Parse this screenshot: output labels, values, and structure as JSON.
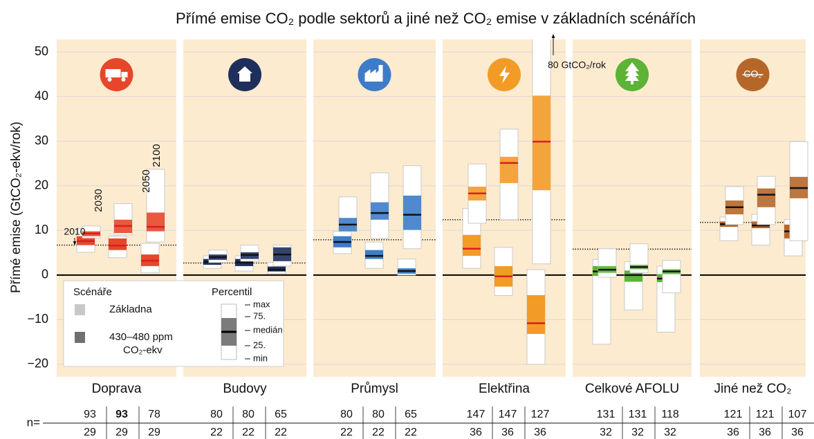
{
  "chart_data": {
    "type": "boxplot",
    "title": "Přímé emise CO₂ podle sektorů a jiné než CO₂ emise v základních scénářích",
    "y_label": "Přímé emise (GtCO₂-ekv/rok)",
    "ylim": [
      -22.8,
      52.8
    ],
    "yticks": [
      {
        "value": -20,
        "label": "−20"
      },
      {
        "value": -10,
        "label": "−10"
      },
      0,
      10,
      20,
      30,
      40,
      50
    ],
    "grid": true,
    "reference_year_label": "2010",
    "year_labels": [
      "2030",
      "2050",
      "2100"
    ],
    "annotation": "80 GtCO₂/rok",
    "n_label": "n=",
    "legend": {
      "scenarios_title": "Scénáře",
      "scenarios": [
        {
          "label_lines": [
            "Základna"
          ],
          "color": "#c8c8c8"
        },
        {
          "label_lines": [
            "430–480 ppm",
            "CO₂-ekv"
          ],
          "color": "#707070"
        }
      ],
      "percentile_title": "Percentil",
      "percentiles": [
        "max",
        "75.",
        "medián",
        "25.",
        "min"
      ]
    },
    "sectors": [
      {
        "name": "Doprava",
        "color": "#e8462a",
        "ref_2010": 6.7,
        "n_baseline": [
          93,
          93,
          78
        ],
        "n_mitigation": [
          29,
          29,
          29
        ],
        "baseline": [
          {
            "min": 8.3,
            "q25": 8.7,
            "median": 9.3,
            "q75": 9.8,
            "max": 11
          },
          {
            "min": 9,
            "q25": 9.4,
            "median": 11,
            "q75": 12.4,
            "max": 16
          },
          {
            "min": 7.4,
            "q25": 9.8,
            "median": 10.8,
            "q75": 14,
            "max": 23.7
          }
        ],
        "mitigation": [
          {
            "min": 5.1,
            "q25": 6.7,
            "median": 7.6,
            "q75": 8.7,
            "max": 10.5
          },
          {
            "min": 3.9,
            "q25": 5.6,
            "median": 6.6,
            "q75": 8.2,
            "max": 8.7
          },
          {
            "min": 0.5,
            "q25": 2,
            "median": 3.2,
            "q75": 4.6,
            "max": 7.1
          }
        ]
      },
      {
        "name": "Budovy",
        "color": "#1f2f5c",
        "ref_2010": 2.7,
        "n_baseline": [
          80,
          80,
          65
        ],
        "n_mitigation": [
          22,
          22,
          22
        ],
        "baseline": [
          {
            "min": 2.8,
            "q25": 3.4,
            "median": 4,
            "q75": 4.6,
            "max": 5.6
          },
          {
            "min": 3.1,
            "q25": 3.6,
            "median": 4.5,
            "q75": 5.1,
            "max": 6.7
          },
          {
            "min": 2,
            "q25": 3.1,
            "median": 4.6,
            "q75": 6.2,
            "max": 6.7
          }
        ],
        "mitigation": [
          {
            "min": 1.5,
            "q25": 2.3,
            "median": 2.9,
            "q75": 3.6,
            "max": 4.3
          },
          {
            "min": 0.9,
            "q25": 2,
            "median": 2.8,
            "q75": 3.6,
            "max": 4.3
          },
          {
            "min": 0.3,
            "q25": 0.8,
            "median": 1.2,
            "q75": 1.9,
            "max": 2.8
          }
        ]
      },
      {
        "name": "Průmysl",
        "color": "#3d7cc9",
        "ref_2010": 7.9,
        "n_baseline": [
          80,
          80,
          65
        ],
        "n_mitigation": [
          22,
          22,
          22
        ],
        "baseline": [
          {
            "min": 9.8,
            "q25": 9.8,
            "median": 11.3,
            "q75": 12.8,
            "max": 17.5
          },
          {
            "min": 8.2,
            "q25": 12.4,
            "median": 13.9,
            "q75": 16.3,
            "max": 22.9
          },
          {
            "min": 5.9,
            "q25": 10.1,
            "median": 13.5,
            "q75": 17.8,
            "max": 24.5
          }
        ],
        "mitigation": [
          {
            "min": 4.8,
            "q25": 6.2,
            "median": 7.4,
            "q75": 8.7,
            "max": 9.8
          },
          {
            "min": 1.5,
            "q25": 3.6,
            "median": 4.3,
            "q75": 5.6,
            "max": 7.4
          },
          {
            "min": 0,
            "q25": 0.3,
            "median": 0.9,
            "q75": 1.5,
            "max": 3.6
          }
        ]
      },
      {
        "name": "Elektřina",
        "color": "#f29b26",
        "ref_2010": 12.4,
        "n_baseline": [
          147,
          147,
          127
        ],
        "n_mitigation": [
          36,
          36,
          36
        ],
        "baseline": [
          {
            "min": 11.6,
            "q25": 16.7,
            "median": 18.3,
            "q75": 19.8,
            "max": 24.9
          },
          {
            "min": 12.4,
            "q25": 20.6,
            "median": 25.1,
            "q75": 26.5,
            "max": 32.7
          },
          {
            "min": 2.5,
            "q25": 19,
            "median": 29.9,
            "q75": 40.2,
            "max": 80
          }
        ],
        "mitigation": [
          {
            "min": 1.5,
            "q25": 4.3,
            "median": 5.9,
            "q75": 9,
            "max": 14.9
          },
          {
            "min": -4.6,
            "q25": -2.6,
            "median": -0.3,
            "q75": 2,
            "max": 6.2
          },
          {
            "min": -20,
            "q25": -13.2,
            "median": -10.8,
            "q75": -4.5,
            "max": 1.2
          }
        ]
      },
      {
        "name": "Celkové AFOLU",
        "color": "#5cb335",
        "ref_2010": 5.8,
        "n_baseline": [
          131,
          131,
          118
        ],
        "n_mitigation": [
          32,
          32,
          32
        ],
        "baseline": [
          {
            "min": -0.5,
            "q25": 0.5,
            "median": 1.2,
            "q75": 2,
            "max": 5.9
          },
          {
            "min": 0.5,
            "q25": 1.3,
            "median": 1.8,
            "q75": 2.3,
            "max": 7
          },
          {
            "min": -4,
            "q25": 0.2,
            "median": 0.8,
            "q75": 1.3,
            "max": 3.3
          }
        ],
        "mitigation": [
          {
            "min": -15.5,
            "q25": -0.2,
            "median": 0.8,
            "q75": 2,
            "max": 3.5
          },
          {
            "min": -7.8,
            "q25": -1.5,
            "median": 0,
            "q75": 1,
            "max": 3
          },
          {
            "min": -12.8,
            "q25": -1.6,
            "median": -0.8,
            "q75": 0.2,
            "max": 2
          }
        ]
      },
      {
        "name": "Jiné než CO₂",
        "icon_label": "CO₂",
        "color": "#b5672a",
        "ref_2010": 11.8,
        "n_baseline": [
          121,
          121,
          107
        ],
        "n_mitigation": [
          36,
          36,
          36
        ],
        "baseline": [
          {
            "min": 11.3,
            "q25": 13.6,
            "median": 15.2,
            "q75": 16.7,
            "max": 19.8
          },
          {
            "min": 11.3,
            "q25": 15.2,
            "median": 18,
            "q75": 19.4,
            "max": 22.1
          },
          {
            "min": 7.7,
            "q25": 17.2,
            "median": 19.5,
            "q75": 22,
            "max": 29.9
          }
        ],
        "mitigation": [
          {
            "min": 7.7,
            "q25": 10.8,
            "median": 11.4,
            "q75": 12,
            "max": 13
          },
          {
            "min": 6.7,
            "q25": 10.5,
            "median": 11.1,
            "q75": 12,
            "max": 13.6
          },
          {
            "min": 4.3,
            "q25": 8.2,
            "median": 9.8,
            "q75": 11.3,
            "max": 12.4
          }
        ]
      }
    ]
  }
}
